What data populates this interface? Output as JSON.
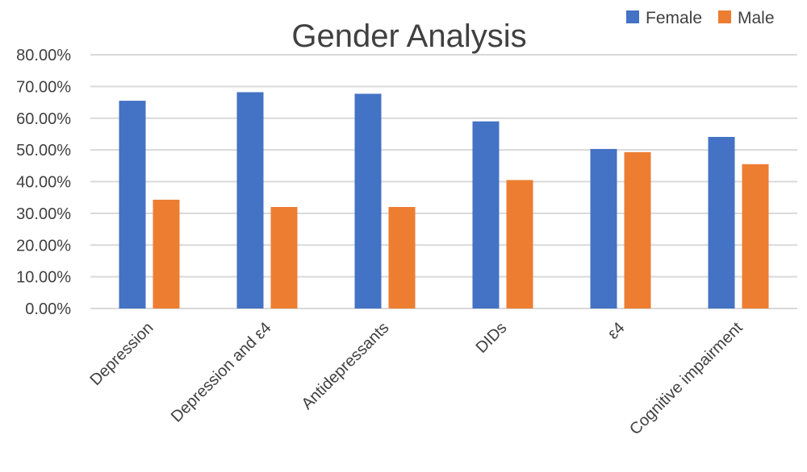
{
  "chart_data": {
    "type": "bar",
    "title": "Gender Analysis",
    "xlabel": "",
    "ylabel": "",
    "categories": [
      "Depression",
      "Depression and ε4",
      "Antidepressants",
      "DIDs",
      "ε4",
      "Cognitive impairment"
    ],
    "series": [
      {
        "name": "Female",
        "color": "#4472C4",
        "values": [
          0.655,
          0.682,
          0.677,
          0.59,
          0.503,
          0.541
        ]
      },
      {
        "name": "Male",
        "color": "#ED7D31",
        "values": [
          0.343,
          0.32,
          0.32,
          0.405,
          0.493,
          0.455
        ]
      }
    ],
    "ylim": [
      0,
      0.8
    ],
    "yticks": [
      "0.00%",
      "10.00%",
      "20.00%",
      "30.00%",
      "40.00%",
      "50.00%",
      "60.00%",
      "70.00%",
      "80.00%"
    ],
    "grid": true,
    "legend": "top-right"
  }
}
